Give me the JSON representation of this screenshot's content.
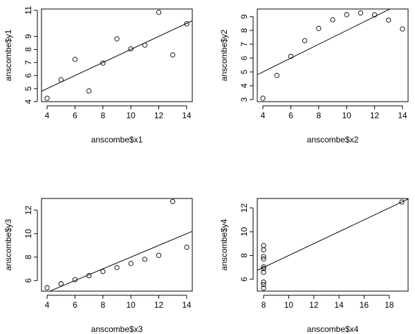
{
  "chart_data": [
    {
      "type": "scatter",
      "xlabel": "anscombe$x1",
      "ylabel": "anscombe$y1",
      "x": [
        10,
        8,
        13,
        9,
        11,
        14,
        6,
        4,
        12,
        7,
        5
      ],
      "y": [
        8.04,
        6.95,
        7.58,
        8.81,
        8.33,
        9.96,
        7.24,
        4.26,
        10.84,
        4.82,
        5.68
      ],
      "xlim": [
        3.6,
        14.4
      ],
      "ylim": [
        4,
        11.1
      ],
      "xticks": [
        4,
        6,
        8,
        10,
        12,
        14
      ],
      "yticks": [
        4,
        5,
        6,
        7,
        8,
        9,
        11
      ],
      "fit_line": {
        "intercept": 3.0,
        "slope": 0.5
      },
      "grid": false
    },
    {
      "type": "scatter",
      "xlabel": "anscombe$x2",
      "ylabel": "anscombe$y2",
      "x": [
        10,
        8,
        13,
        9,
        11,
        14,
        6,
        4,
        12,
        7,
        5
      ],
      "y": [
        9.14,
        8.14,
        8.74,
        8.77,
        9.26,
        8.1,
        6.13,
        3.1,
        9.13,
        7.26,
        4.74
      ],
      "xlim": [
        3.6,
        14.4
      ],
      "ylim": [
        2.85,
        9.55
      ],
      "xticks": [
        4,
        6,
        8,
        10,
        12,
        14
      ],
      "yticks": [
        3,
        4,
        5,
        6,
        7,
        8,
        9
      ],
      "fit_line": {
        "intercept": 3.0,
        "slope": 0.5
      },
      "grid": false
    },
    {
      "type": "scatter",
      "xlabel": "anscombe$x3",
      "ylabel": "anscombe$y3",
      "x": [
        10,
        8,
        13,
        9,
        11,
        14,
        6,
        4,
        12,
        7,
        5
      ],
      "y": [
        7.46,
        6.77,
        12.74,
        7.11,
        7.81,
        8.84,
        6.08,
        5.39,
        8.15,
        6.42,
        5.73
      ],
      "xlim": [
        3.6,
        14.4
      ],
      "ylim": [
        5.1,
        13.0
      ],
      "xticks": [
        4,
        6,
        8,
        10,
        12,
        14
      ],
      "yticks": [
        6,
        8,
        10,
        12
      ],
      "fit_line": {
        "intercept": 3.0,
        "slope": 0.5
      },
      "grid": false
    },
    {
      "type": "scatter",
      "xlabel": "anscombe$x4",
      "ylabel": "anscombe$y4",
      "x": [
        8,
        8,
        8,
        8,
        8,
        8,
        8,
        19,
        8,
        8,
        8
      ],
      "y": [
        6.58,
        5.76,
        7.71,
        8.84,
        8.47,
        7.04,
        5.25,
        12.5,
        5.56,
        7.91,
        6.89
      ],
      "xlim": [
        7.5,
        19.5
      ],
      "ylim": [
        5.0,
        12.8
      ],
      "xticks": [
        8,
        10,
        12,
        14,
        16,
        18
      ],
      "yticks": [
        6,
        8,
        10,
        12
      ],
      "fit_line": {
        "intercept": 3.0,
        "slope": 0.5
      },
      "grid": false
    }
  ]
}
